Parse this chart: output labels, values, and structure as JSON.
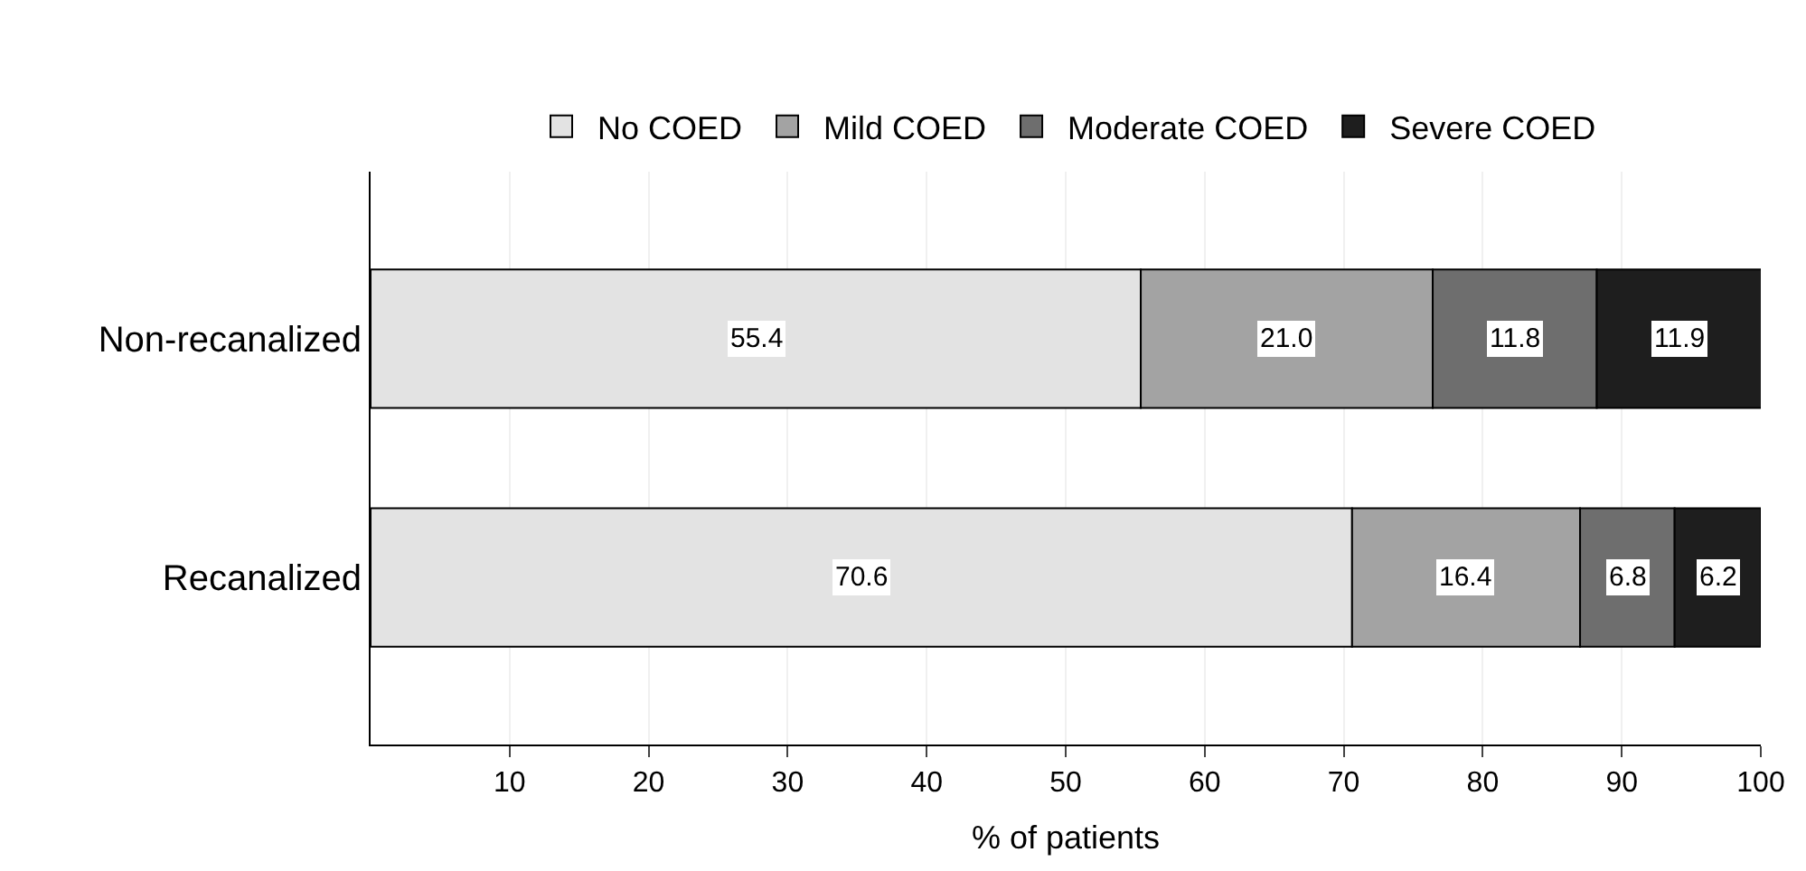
{
  "chart_data": {
    "type": "bar",
    "orientation": "horizontal",
    "stacked": true,
    "xlabel": "% of patients",
    "categories": [
      "Non-recanalized",
      "Recanalized"
    ],
    "series": [
      {
        "name": "No COED",
        "color": "#e3e3e3",
        "values": [
          55.4,
          70.6
        ],
        "value_labels": [
          "55.4",
          "70.6"
        ]
      },
      {
        "name": "Mild COED",
        "color": "#a3a3a3",
        "values": [
          21.0,
          16.4
        ],
        "value_labels": [
          "21.0",
          "16.4"
        ]
      },
      {
        "name": "Moderate COED",
        "color": "#6e6e6e",
        "values": [
          11.8,
          6.8
        ],
        "value_labels": [
          "11.8",
          "6.8"
        ]
      },
      {
        "name": "Severe COED",
        "color": "#1e1e1e",
        "values": [
          11.9,
          6.2
        ],
        "value_labels": [
          "11.9",
          "6.2"
        ]
      }
    ],
    "xlim": [
      0,
      100
    ],
    "xticks": [
      10,
      20,
      30,
      40,
      50,
      60,
      70,
      80,
      90,
      100
    ],
    "grid": "x",
    "legend": "top"
  }
}
